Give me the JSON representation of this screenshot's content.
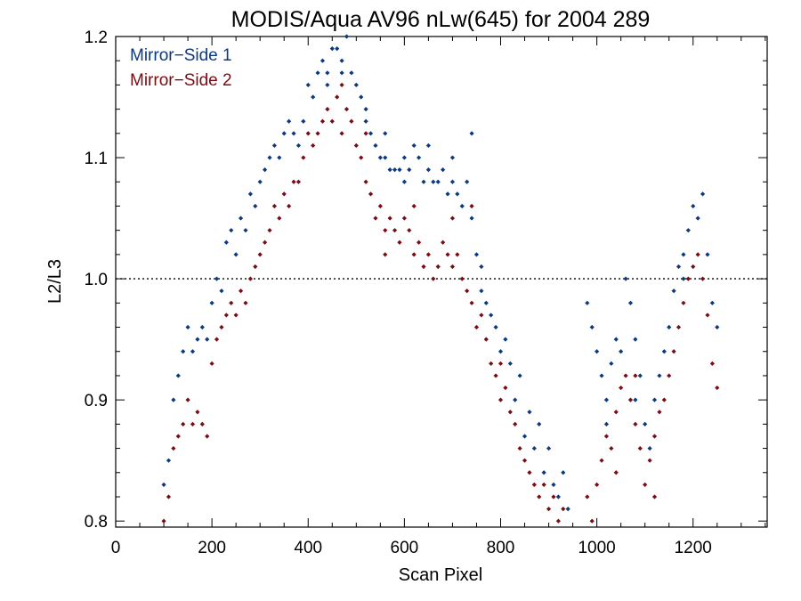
{
  "chart_data": {
    "type": "scatter",
    "title": "MODIS/Aqua AV96 nLw(645) for 2004 289",
    "xlabel": "Scan Pixel",
    "ylabel": "L2/L3",
    "xlim": [
      0,
      1354
    ],
    "ylim": [
      0.795,
      1.2
    ],
    "x_ticks": [
      0,
      200,
      400,
      600,
      800,
      1000,
      1200
    ],
    "x_tick_labels": [
      "0",
      "200",
      "400",
      "600",
      "800",
      "1000",
      "1200"
    ],
    "y_ticks": [
      0.8,
      0.9,
      1.0,
      1.1,
      1.2
    ],
    "y_tick_labels": [
      "0.8",
      "0.9",
      "1.0",
      "1.1",
      "1.2"
    ],
    "reference_line": {
      "y": 1.0,
      "style": "dotted"
    },
    "legend_placement": "top-left",
    "series": [
      {
        "name": "Mirror−Side 1",
        "color": "#0c3a7e",
        "marker": "diamond",
        "points": [
          [
            100,
            0.83
          ],
          [
            110,
            0.85
          ],
          [
            120,
            0.9
          ],
          [
            130,
            0.92
          ],
          [
            140,
            0.94
          ],
          [
            150,
            0.96
          ],
          [
            160,
            0.94
          ],
          [
            170,
            0.95
          ],
          [
            180,
            0.96
          ],
          [
            190,
            0.95
          ],
          [
            200,
            0.98
          ],
          [
            210,
            1.0
          ],
          [
            220,
            0.99
          ],
          [
            230,
            1.03
          ],
          [
            240,
            1.04
          ],
          [
            250,
            1.02
          ],
          [
            260,
            1.05
          ],
          [
            270,
            1.04
          ],
          [
            280,
            1.07
          ],
          [
            290,
            1.06
          ],
          [
            300,
            1.08
          ],
          [
            310,
            1.09
          ],
          [
            320,
            1.1
          ],
          [
            330,
            1.11
          ],
          [
            340,
            1.1
          ],
          [
            350,
            1.12
          ],
          [
            360,
            1.13
          ],
          [
            370,
            1.12
          ],
          [
            380,
            1.11
          ],
          [
            390,
            1.13
          ],
          [
            400,
            1.16
          ],
          [
            410,
            1.15
          ],
          [
            420,
            1.17
          ],
          [
            430,
            1.18
          ],
          [
            440,
            1.17
          ],
          [
            450,
            1.19
          ],
          [
            460,
            1.19
          ],
          [
            470,
            1.18
          ],
          [
            480,
            1.2
          ],
          [
            490,
            1.17
          ],
          [
            500,
            1.16
          ],
          [
            510,
            1.15
          ],
          [
            520,
            1.13
          ],
          [
            530,
            1.12
          ],
          [
            540,
            1.11
          ],
          [
            550,
            1.1
          ],
          [
            560,
            1.1
          ],
          [
            570,
            1.09
          ],
          [
            580,
            1.09
          ],
          [
            590,
            1.09
          ],
          [
            600,
            1.1
          ],
          [
            610,
            1.09
          ],
          [
            620,
            1.11
          ],
          [
            630,
            1.1
          ],
          [
            640,
            1.08
          ],
          [
            650,
            1.09
          ],
          [
            660,
            1.08
          ],
          [
            670,
            1.08
          ],
          [
            680,
            1.09
          ],
          [
            690,
            1.07
          ],
          [
            700,
            1.08
          ],
          [
            710,
            1.07
          ],
          [
            720,
            1.06
          ],
          [
            730,
            1.08
          ],
          [
            740,
            1.05
          ],
          [
            750,
            1.02
          ],
          [
            760,
            0.99
          ],
          [
            770,
            0.98
          ],
          [
            780,
            0.97
          ],
          [
            790,
            0.96
          ],
          [
            800,
            0.94
          ],
          [
            810,
            0.95
          ],
          [
            820,
            0.93
          ],
          [
            830,
            0.9
          ],
          [
            840,
            0.92
          ],
          [
            850,
            0.87
          ],
          [
            860,
            0.89
          ],
          [
            870,
            0.86
          ],
          [
            880,
            0.88
          ],
          [
            890,
            0.84
          ],
          [
            900,
            0.86
          ],
          [
            910,
            0.83
          ],
          [
            920,
            0.82
          ],
          [
            930,
            0.84
          ],
          [
            940,
            0.81
          ],
          [
            980,
            0.98
          ],
          [
            990,
            0.96
          ],
          [
            1000,
            0.94
          ],
          [
            1010,
            0.92
          ],
          [
            1020,
            0.9
          ],
          [
            1030,
            0.93
          ],
          [
            1040,
            0.95
          ],
          [
            1050,
            0.94
          ],
          [
            1060,
            1.0
          ],
          [
            1070,
            0.98
          ],
          [
            1080,
            0.95
          ],
          [
            1090,
            0.92
          ],
          [
            1100,
            0.88
          ],
          [
            1110,
            0.86
          ],
          [
            1120,
            0.9
          ],
          [
            1130,
            0.92
          ],
          [
            1140,
            0.94
          ],
          [
            1150,
            0.96
          ],
          [
            1160,
            0.99
          ],
          [
            1170,
            1.01
          ],
          [
            1180,
            1.02
          ],
          [
            1190,
            1.04
          ],
          [
            1200,
            1.06
          ],
          [
            1210,
            1.05
          ],
          [
            1220,
            1.07
          ],
          [
            1230,
            1.02
          ],
          [
            1240,
            0.98
          ],
          [
            1250,
            0.96
          ],
          [
            440,
            1.16
          ],
          [
            470,
            1.17
          ],
          [
            520,
            1.14
          ],
          [
            560,
            1.12
          ],
          [
            600,
            1.08
          ],
          [
            650,
            1.11
          ],
          [
            700,
            1.1
          ],
          [
            740,
            1.12
          ],
          [
            760,
            1.01
          ],
          [
            1020,
            0.88
          ],
          [
            1080,
            0.9
          ],
          [
            1180,
            1.0
          ]
        ]
      },
      {
        "name": "Mirror−Side 2",
        "color": "#7a0c14",
        "marker": "diamond",
        "points": [
          [
            100,
            0.8
          ],
          [
            110,
            0.82
          ],
          [
            120,
            0.86
          ],
          [
            130,
            0.87
          ],
          [
            140,
            0.88
          ],
          [
            150,
            0.9
          ],
          [
            160,
            0.88
          ],
          [
            170,
            0.89
          ],
          [
            180,
            0.88
          ],
          [
            190,
            0.87
          ],
          [
            200,
            0.93
          ],
          [
            210,
            0.95
          ],
          [
            220,
            0.96
          ],
          [
            230,
            0.97
          ],
          [
            240,
            0.98
          ],
          [
            250,
            0.97
          ],
          [
            260,
            0.99
          ],
          [
            270,
            0.98
          ],
          [
            280,
            1.0
          ],
          [
            290,
            1.01
          ],
          [
            300,
            1.02
          ],
          [
            310,
            1.03
          ],
          [
            320,
            1.04
          ],
          [
            330,
            1.06
          ],
          [
            340,
            1.05
          ],
          [
            350,
            1.07
          ],
          [
            360,
            1.06
          ],
          [
            370,
            1.08
          ],
          [
            380,
            1.08
          ],
          [
            390,
            1.1
          ],
          [
            400,
            1.12
          ],
          [
            410,
            1.11
          ],
          [
            420,
            1.12
          ],
          [
            430,
            1.13
          ],
          [
            440,
            1.14
          ],
          [
            450,
            1.13
          ],
          [
            460,
            1.15
          ],
          [
            470,
            1.16
          ],
          [
            480,
            1.14
          ],
          [
            490,
            1.13
          ],
          [
            500,
            1.11
          ],
          [
            510,
            1.1
          ],
          [
            520,
            1.08
          ],
          [
            530,
            1.07
          ],
          [
            540,
            1.05
          ],
          [
            550,
            1.06
          ],
          [
            560,
            1.04
          ],
          [
            570,
            1.05
          ],
          [
            580,
            1.04
          ],
          [
            590,
            1.03
          ],
          [
            600,
            1.05
          ],
          [
            610,
            1.04
          ],
          [
            620,
            1.02
          ],
          [
            630,
            1.03
          ],
          [
            640,
            1.01
          ],
          [
            650,
            1.02
          ],
          [
            660,
            1.0
          ],
          [
            670,
            1.01
          ],
          [
            680,
            1.03
          ],
          [
            690,
            1.02
          ],
          [
            700,
            1.01
          ],
          [
            710,
            1.02
          ],
          [
            720,
            1.0
          ],
          [
            730,
            0.99
          ],
          [
            740,
            0.98
          ],
          [
            750,
            0.96
          ],
          [
            760,
            0.97
          ],
          [
            770,
            0.95
          ],
          [
            780,
            0.93
          ],
          [
            790,
            0.92
          ],
          [
            800,
            0.93
          ],
          [
            810,
            0.91
          ],
          [
            820,
            0.89
          ],
          [
            830,
            0.88
          ],
          [
            840,
            0.86
          ],
          [
            850,
            0.85
          ],
          [
            860,
            0.84
          ],
          [
            870,
            0.83
          ],
          [
            880,
            0.82
          ],
          [
            890,
            0.83
          ],
          [
            900,
            0.81
          ],
          [
            910,
            0.82
          ],
          [
            920,
            0.8
          ],
          [
            930,
            0.81
          ],
          [
            980,
            0.82
          ],
          [
            990,
            0.8
          ],
          [
            1000,
            0.83
          ],
          [
            1010,
            0.85
          ],
          [
            1020,
            0.87
          ],
          [
            1030,
            0.86
          ],
          [
            1040,
            0.89
          ],
          [
            1050,
            0.91
          ],
          [
            1060,
            0.92
          ],
          [
            1070,
            0.9
          ],
          [
            1080,
            0.88
          ],
          [
            1090,
            0.86
          ],
          [
            1100,
            0.83
          ],
          [
            1110,
            0.85
          ],
          [
            1120,
            0.87
          ],
          [
            1130,
            0.89
          ],
          [
            1140,
            0.9
          ],
          [
            1150,
            0.92
          ],
          [
            1160,
            0.94
          ],
          [
            1170,
            0.96
          ],
          [
            1180,
            0.98
          ],
          [
            1190,
            1.0
          ],
          [
            1200,
            1.01
          ],
          [
            1210,
            1.02
          ],
          [
            1220,
            1.0
          ],
          [
            1230,
            0.97
          ],
          [
            1240,
            0.93
          ],
          [
            1250,
            0.91
          ],
          [
            470,
            1.12
          ],
          [
            520,
            1.12
          ],
          [
            560,
            1.02
          ],
          [
            620,
            1.06
          ],
          [
            700,
            1.05
          ],
          [
            740,
            1.06
          ],
          [
            800,
            0.9
          ],
          [
            1040,
            0.84
          ],
          [
            1080,
            0.92
          ],
          [
            1120,
            0.82
          ]
        ]
      }
    ]
  }
}
